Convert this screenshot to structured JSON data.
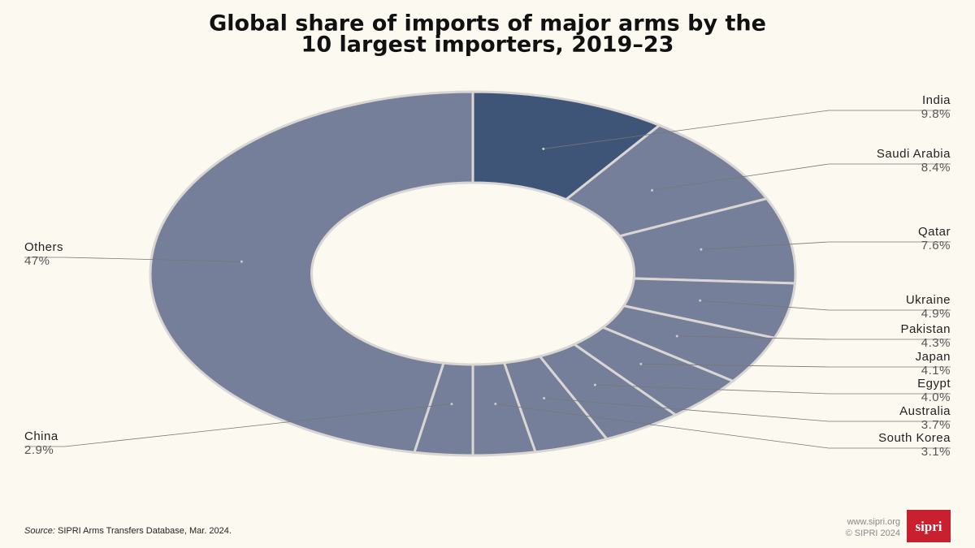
{
  "chart_data": {
    "type": "donut",
    "title": [
      "Global share of imports of major arms by the",
      "10 largest importers, 2019–23"
    ],
    "categories": [
      "India",
      "Saudi Arabia",
      "Qatar",
      "Ukraine",
      "Pakistan",
      "Japan",
      "Egypt",
      "Australia",
      "South Korea",
      "China",
      "Others"
    ],
    "values": [
      9.8,
      8.4,
      7.6,
      4.9,
      4.3,
      4.1,
      4.0,
      3.7,
      3.1,
      2.9,
      47
    ],
    "value_labels": [
      "9.8%",
      "8.4%",
      "7.6%",
      "4.9%",
      "4.3%",
      "4.1%",
      "4.0%",
      "3.7%",
      "3.1%",
      "2.9%",
      "47%"
    ],
    "colors": [
      "#3f5577",
      "#767f99",
      "#767f99",
      "#767f99",
      "#767f99",
      "#767f99",
      "#767f99",
      "#767f99",
      "#767f99",
      "#767f99",
      "#767f99"
    ],
    "source_label": "Source:",
    "source": "SIPRI Arms Transfers Database, Mar. 2024.",
    "website": "www.sipri.org",
    "copyright": "© SIPRI 2024",
    "logo": "sipri"
  }
}
